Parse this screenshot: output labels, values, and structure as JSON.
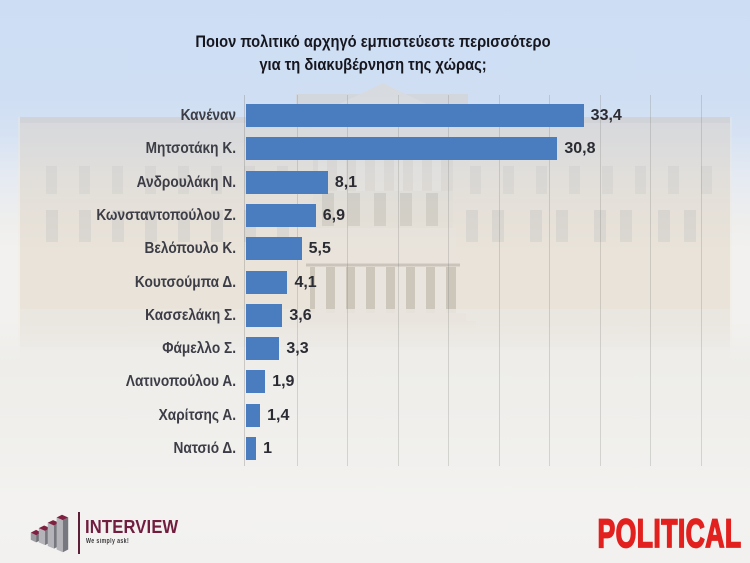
{
  "chart_data": {
    "type": "bar",
    "orientation": "horizontal",
    "title": "Ποιον πολιτικό αρχηγό εμπιστεύεστε περισσότερο για τη διακυβέρνηση της χώρας;",
    "title_lines": [
      "Ποιον πολιτικό αρχηγό εμπιστεύεστε περισσότερο",
      "για τη διακυβέρνηση της χώρας;"
    ],
    "categories": [
      "Κανέναν",
      "Μητσοτάκη Κ.",
      "Ανδρουλάκη Ν.",
      "Κωνσταντοπούλου Ζ.",
      "Βελόπουλο Κ.",
      "Κουτσούμπα Δ.",
      "Κασσελάκη Σ.",
      "Φάμελλο Σ.",
      "Λατινοπούλου Α.",
      "Χαρίτσης Α.",
      "Νατσιό Δ."
    ],
    "values": [
      33.4,
      30.8,
      8.1,
      6.9,
      5.5,
      4.1,
      3.6,
      3.3,
      1.9,
      1.4,
      1
    ],
    "values_display": [
      "33,4",
      "30,8",
      "8,1",
      "6,9",
      "5,5",
      "4,1",
      "3,6",
      "3,3",
      "1,9",
      "1,4",
      "1"
    ],
    "xlim": [
      0,
      50
    ],
    "gridline_step": 5,
    "grid": true,
    "legend": false,
    "bar_color": "#4a7dc0"
  },
  "branding": {
    "interview": {
      "name": "INTERVIEW",
      "tagline": "We simply ask!",
      "color": "#701d3e"
    },
    "political": {
      "name": "POLITICAL",
      "color": "#e2211f"
    }
  }
}
